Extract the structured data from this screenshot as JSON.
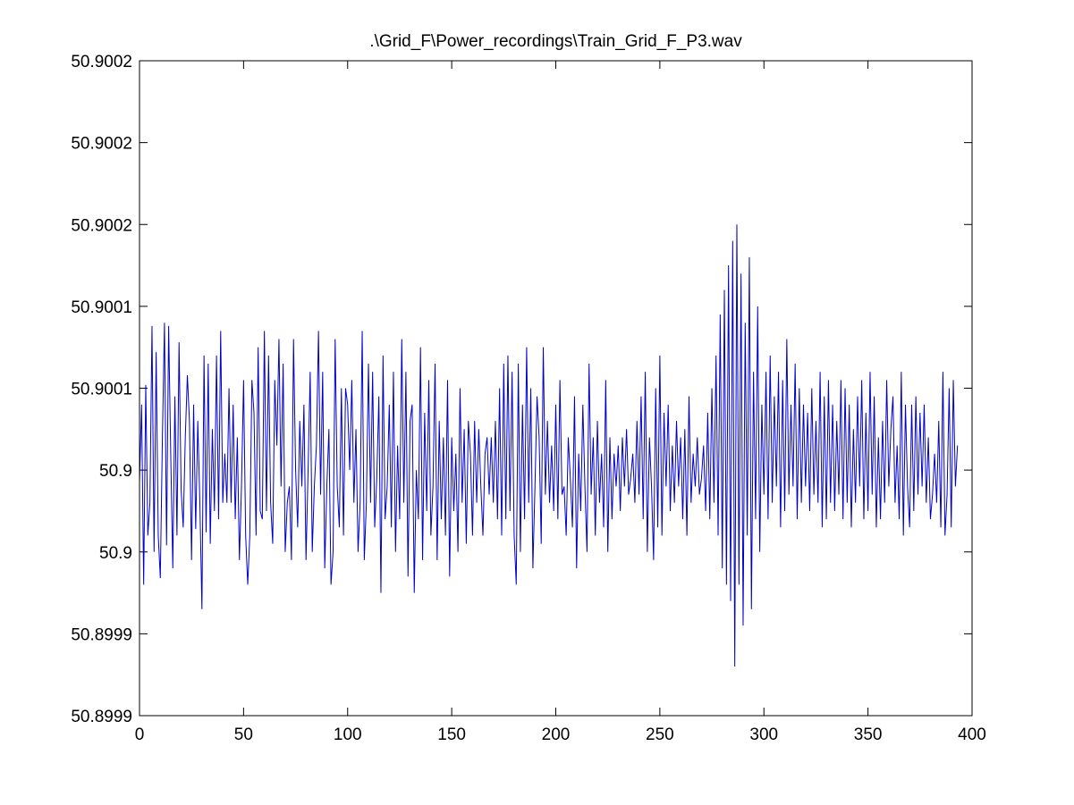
{
  "chart_data": {
    "type": "line",
    "title": ".\\Grid_F\\Power_recordings\\Train_Grid_F_P3.wav",
    "xlabel": "",
    "ylabel": "",
    "xlim": [
      0,
      400
    ],
    "ylim": [
      50.89985,
      50.90025
    ],
    "grid": false,
    "legend": "none",
    "line_color": "#0000cc",
    "x_ticks": [
      {
        "value": 0,
        "label": "0"
      },
      {
        "value": 50,
        "label": "50"
      },
      {
        "value": 100,
        "label": "100"
      },
      {
        "value": 150,
        "label": "150"
      },
      {
        "value": 200,
        "label": "200"
      },
      {
        "value": 250,
        "label": "250"
      },
      {
        "value": 300,
        "label": "300"
      },
      {
        "value": 350,
        "label": "350"
      },
      {
        "value": 400,
        "label": "400"
      }
    ],
    "y_ticks": [
      {
        "value": 50.89985,
        "label": "50.8999"
      },
      {
        "value": 50.8999,
        "label": "50.8999"
      },
      {
        "value": 50.89995,
        "label": "50.9"
      },
      {
        "value": 50.9,
        "label": "50.9"
      },
      {
        "value": 50.90005,
        "label": "50.9001"
      },
      {
        "value": 50.9001,
        "label": "50.9001"
      },
      {
        "value": 50.90015,
        "label": "50.9002"
      },
      {
        "value": 50.9002,
        "label": "50.9002"
      },
      {
        "value": 50.90025,
        "label": "50.9002"
      }
    ],
    "series": [
      {
        "x_start": 0,
        "x_step": 1,
        "y_base": 50.9,
        "y_unit": 1e-06,
        "values": [
          -7,
          40,
          -70,
          52,
          -40,
          -20,
          88,
          -50,
          72,
          -40,
          -66,
          20,
          90,
          -46,
          88,
          10,
          -60,
          45,
          -40,
          78,
          -12,
          -35,
          20,
          58,
          30,
          -55,
          40,
          -36,
          30,
          -20,
          -85,
          70,
          -38,
          65,
          -45,
          25,
          -25,
          70,
          -30,
          85,
          -20,
          10,
          -20,
          50,
          -20,
          40,
          -30,
          20,
          -55,
          -10,
          55,
          -40,
          -70,
          -40,
          55,
          35,
          -40,
          75,
          -25,
          -30,
          85,
          -25,
          70,
          -20,
          -45,
          55,
          15,
          80,
          -10,
          65,
          -50,
          -20,
          -10,
          -55,
          80,
          0,
          -35,
          30,
          -10,
          40,
          -55,
          0,
          60,
          -50,
          -10,
          15,
          85,
          -15,
          60,
          -60,
          -10,
          25,
          -70,
          -50,
          80,
          -10,
          -35,
          50,
          -40,
          50,
          40,
          0,
          55,
          -20,
          25,
          -50,
          -20,
          85,
          -55,
          -20,
          65,
          -20,
          60,
          -35,
          -5,
          45,
          -75,
          70,
          -30,
          -10,
          40,
          -35,
          60,
          -50,
          15,
          -30,
          80,
          -20,
          60,
          -65,
          30,
          40,
          -75,
          0,
          -30,
          75,
          -55,
          35,
          -25,
          55,
          -40,
          -10,
          65,
          -55,
          30,
          -30,
          20,
          -40,
          55,
          -65,
          20,
          -25,
          10,
          -50,
          50,
          -20,
          25,
          -45,
          30,
          10,
          -40,
          30,
          -20,
          25,
          -10,
          -40,
          10,
          20,
          -15,
          20,
          -20,
          30,
          -30,
          50,
          -40,
          65,
          -30,
          70,
          -25,
          60,
          -40,
          -70,
          65,
          -50,
          40,
          -30,
          75,
          -20,
          50,
          -60,
          -10,
          45,
          20,
          -45,
          75,
          -15,
          30,
          -20,
          15,
          -25,
          40,
          -30,
          55,
          -15,
          -10,
          -40,
          20,
          -5,
          -35,
          45,
          -60,
          10,
          -25,
          40,
          -10,
          -50,
          65,
          -15,
          20,
          -40,
          30,
          -20,
          10,
          -35,
          55,
          -50,
          20,
          -30,
          10,
          -10,
          15,
          -25,
          20,
          -10,
          25,
          -15,
          -5,
          10,
          -20,
          30,
          -15,
          45,
          -30,
          60,
          -50,
          20,
          -10,
          -55,
          50,
          -35,
          70,
          -40,
          35,
          -10,
          40,
          -25,
          15,
          -20,
          30,
          -10,
          20,
          -30,
          25,
          -40,
          45,
          -20,
          10,
          -10,
          20,
          -15,
          -5,
          15,
          -25,
          35,
          -30,
          50,
          -20,
          70,
          -40,
          95,
          -60,
          110,
          -70,
          125,
          -80,
          140,
          -120,
          150,
          -70,
          120,
          -95,
          90,
          -40,
          130,
          -85,
          60,
          -30,
          100,
          -50,
          40,
          -15,
          60,
          -30,
          70,
          -20,
          45,
          -10,
          60,
          -35,
          55,
          -25,
          80,
          -15,
          40,
          -10,
          65,
          -30,
          50,
          -20,
          40,
          -10,
          35,
          -25,
          50,
          -15,
          30,
          -20,
          60,
          -35,
          45,
          -30,
          55,
          -20,
          40,
          -25,
          30,
          -15,
          55,
          -30,
          50,
          -20,
          40,
          -35,
          25,
          -20,
          45,
          -10,
          55,
          -30,
          35,
          -25,
          60,
          -15,
          45,
          -35,
          20,
          -30,
          30,
          -20,
          55,
          -10,
          25,
          45,
          -20,
          15,
          -30,
          60,
          -40,
          40,
          -10,
          -35,
          40,
          -25,
          45,
          -15,
          35,
          -10,
          40,
          -20,
          20,
          -30,
          -15,
          10,
          -20,
          30,
          -35,
          60,
          -40,
          -15,
          50,
          -35,
          55,
          -10,
          15
        ]
      }
    ]
  }
}
